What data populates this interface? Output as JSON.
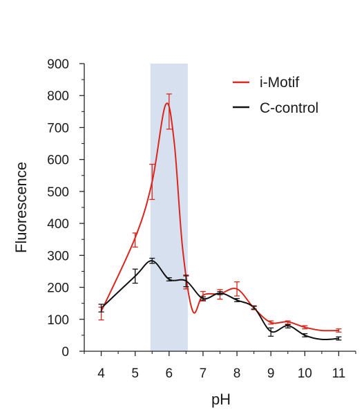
{
  "chart_data": {
    "type": "line",
    "xlabel": "pH",
    "ylabel": "Fluorescence",
    "xlim": [
      3.5,
      11.5
    ],
    "ylim": [
      0,
      900
    ],
    "xticks": [
      4,
      5,
      6,
      7,
      8,
      9,
      10,
      11
    ],
    "xtick_labels": [
      "4",
      "5",
      "6",
      "7",
      "8",
      "9",
      "10",
      "11"
    ],
    "yticks": [
      0,
      100,
      200,
      300,
      400,
      500,
      600,
      700,
      800,
      900
    ],
    "ytick_labels": [
      "0",
      "100",
      "200",
      "300",
      "400",
      "500",
      "600",
      "700",
      "800",
      "900"
    ],
    "shaded_region": {
      "x_start": 5.45,
      "x_end": 6.55,
      "color": "#d6e0ee"
    },
    "legend_position": "top-right",
    "grid": false,
    "series": [
      {
        "name": "i-Motif",
        "color": "#d9261c",
        "markers": [
          {
            "x": 4.0,
            "y": 118,
            "err": 20
          },
          {
            "x": 5.0,
            "y": 348,
            "err": 22
          },
          {
            "x": 5.5,
            "y": 530,
            "err": 55
          },
          {
            "x": 6.0,
            "y": 750,
            "err": 55
          },
          {
            "x": 6.5,
            "y": 215,
            "err": 20
          },
          {
            "x": 7.0,
            "y": 172,
            "err": 15
          },
          {
            "x": 7.5,
            "y": 178,
            "err": 15
          },
          {
            "x": 8.0,
            "y": 195,
            "err": 22
          },
          {
            "x": 8.5,
            "y": 135,
            "err": 5
          },
          {
            "x": 9.0,
            "y": 90,
            "err": 5
          },
          {
            "x": 9.5,
            "y": 90,
            "err": 5
          },
          {
            "x": 10.0,
            "y": 75,
            "err": 5
          },
          {
            "x": 11.0,
            "y": 65,
            "err": 5
          }
        ],
        "curve": [
          {
            "x": 4.0,
            "y": 125
          },
          {
            "x": 5.0,
            "y": 355
          },
          {
            "x": 5.5,
            "y": 530
          },
          {
            "x": 5.9,
            "y": 772
          },
          {
            "x": 6.15,
            "y": 655
          },
          {
            "x": 6.4,
            "y": 320
          },
          {
            "x": 6.7,
            "y": 125
          },
          {
            "x": 7.0,
            "y": 175
          },
          {
            "x": 7.5,
            "y": 180
          },
          {
            "x": 8.0,
            "y": 195
          },
          {
            "x": 8.5,
            "y": 135
          },
          {
            "x": 9.0,
            "y": 90
          },
          {
            "x": 9.5,
            "y": 92
          },
          {
            "x": 10.0,
            "y": 75
          },
          {
            "x": 10.5,
            "y": 65
          },
          {
            "x": 11.0,
            "y": 65
          }
        ]
      },
      {
        "name": "C-control",
        "color": "#111111",
        "markers": [
          {
            "x": 4.0,
            "y": 135,
            "err": 12
          },
          {
            "x": 5.0,
            "y": 235,
            "err": 22
          },
          {
            "x": 5.5,
            "y": 283,
            "err": 8
          },
          {
            "x": 6.0,
            "y": 225,
            "err": 5
          },
          {
            "x": 6.5,
            "y": 220,
            "err": 18
          },
          {
            "x": 7.0,
            "y": 165,
            "err": 5
          },
          {
            "x": 7.5,
            "y": 182,
            "err": 5
          },
          {
            "x": 8.0,
            "y": 160,
            "err": 5
          },
          {
            "x": 8.5,
            "y": 137,
            "err": 5
          },
          {
            "x": 9.0,
            "y": 60,
            "err": 13
          },
          {
            "x": 9.5,
            "y": 78,
            "err": 5
          },
          {
            "x": 10.0,
            "y": 50,
            "err": 5
          },
          {
            "x": 11.0,
            "y": 40,
            "err": 5
          }
        ],
        "curve": [
          {
            "x": 4.0,
            "y": 135
          },
          {
            "x": 5.0,
            "y": 235
          },
          {
            "x": 5.5,
            "y": 283
          },
          {
            "x": 6.0,
            "y": 225
          },
          {
            "x": 6.5,
            "y": 220
          },
          {
            "x": 7.0,
            "y": 165
          },
          {
            "x": 7.5,
            "y": 182
          },
          {
            "x": 8.0,
            "y": 160
          },
          {
            "x": 8.5,
            "y": 137
          },
          {
            "x": 9.0,
            "y": 62
          },
          {
            "x": 9.5,
            "y": 80
          },
          {
            "x": 10.0,
            "y": 50
          },
          {
            "x": 10.5,
            "y": 37
          },
          {
            "x": 11.0,
            "y": 40
          }
        ]
      }
    ]
  }
}
